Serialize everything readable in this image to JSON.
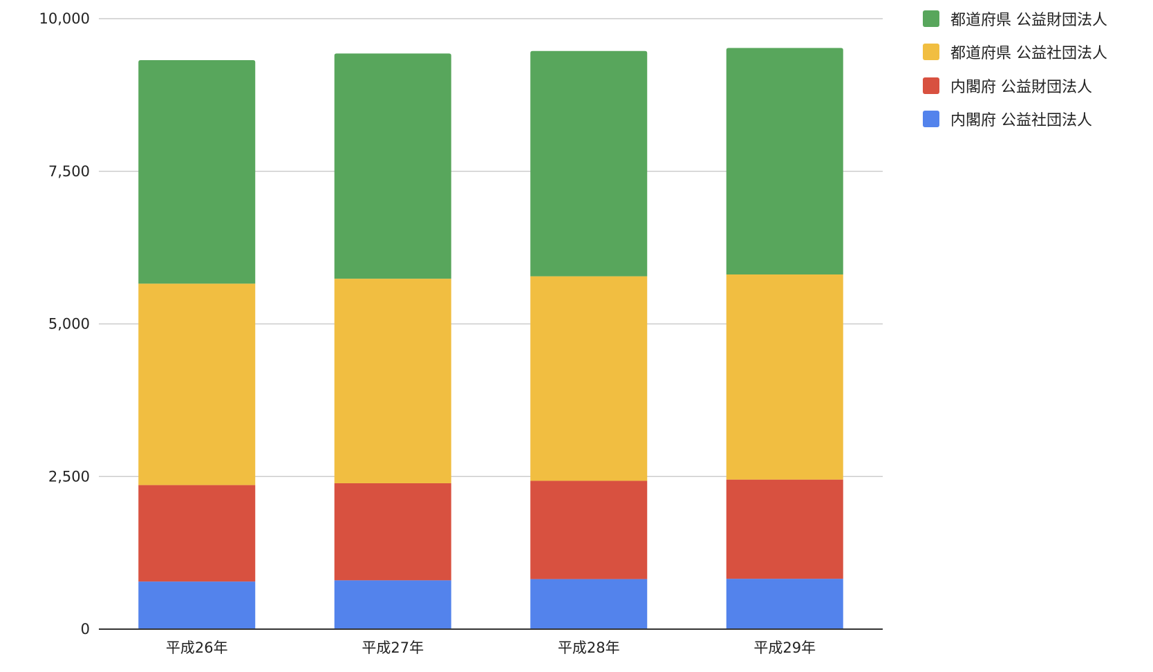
{
  "chart_data": {
    "type": "bar",
    "stacked": true,
    "categories": [
      "平成26年",
      "平成27年",
      "平成28年",
      "平成29年"
    ],
    "series": [
      {
        "name": "内閣府 公益社団法人",
        "color": "#5383ec",
        "values": [
          780,
          800,
          820,
          825
        ]
      },
      {
        "name": "内閣府 公益財団法人",
        "color": "#d85140",
        "values": [
          1580,
          1590,
          1610,
          1625
        ]
      },
      {
        "name": "都道府県 公益社団法人",
        "color": "#f1be41",
        "values": [
          3300,
          3350,
          3350,
          3360
        ]
      },
      {
        "name": "都道府県 公益財団法人",
        "color": "#58a65c",
        "values": [
          3660,
          3690,
          3690,
          3710
        ]
      }
    ],
    "ylim": [
      0,
      10000
    ],
    "yticks": [
      0,
      2500,
      5000,
      7500,
      10000
    ],
    "ytick_labels": [
      "0",
      "2,500",
      "5,000",
      "7,500",
      "10,000"
    ],
    "grid": true,
    "legend_position": "top-right",
    "title": "",
    "xlabel": "",
    "ylabel": ""
  },
  "legend": {
    "items": [
      {
        "label": "都道府県 公益財団法人",
        "color": "#58a65c"
      },
      {
        "label": "都道府県 公益社団法人",
        "color": "#f1be41"
      },
      {
        "label": "内閣府 公益財団法人",
        "color": "#d85140"
      },
      {
        "label": "内閣府 公益社団法人",
        "color": "#5383ec"
      }
    ]
  }
}
